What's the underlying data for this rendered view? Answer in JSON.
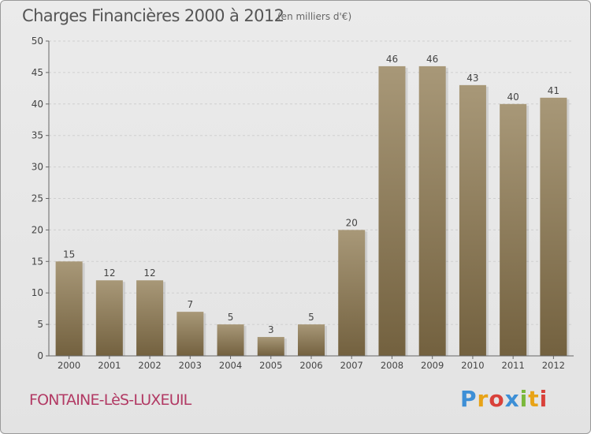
{
  "header": {
    "title": "Charges Financières 2000 à 2012",
    "subtitle": "(en milliers d'€)"
  },
  "footer": {
    "commune": "FONTAINE-LèS-LUXEUIL",
    "logo_letters": [
      "P",
      "r",
      "o",
      "x",
      "i",
      "t",
      "i"
    ],
    "logo_colors": [
      "#3d8fd6",
      "#e8a317",
      "#d9413a",
      "#3d8fd6",
      "#7ab83b",
      "#e8a317",
      "#d9413a"
    ]
  },
  "colors": {
    "bar_top": "#a89878",
    "bar_bottom": "#73613f",
    "axis": "#666666",
    "grid": "#cfcfcf",
    "text": "#444444"
  },
  "chart_data": {
    "type": "bar",
    "categories": [
      "2000",
      "2001",
      "2002",
      "2003",
      "2004",
      "2005",
      "2006",
      "2007",
      "2008",
      "2009",
      "2010",
      "2011",
      "2012"
    ],
    "values": [
      15,
      12,
      12,
      7,
      5,
      3,
      5,
      20,
      46,
      46,
      43,
      40,
      41
    ],
    "title": "Charges Financières 2000 à 2012",
    "subtitle": "(en milliers d'€)",
    "ylim": [
      0,
      50
    ],
    "yticks": [
      0,
      5,
      10,
      15,
      20,
      25,
      30,
      35,
      40,
      45,
      50
    ],
    "grid": true,
    "data_labels": true
  }
}
